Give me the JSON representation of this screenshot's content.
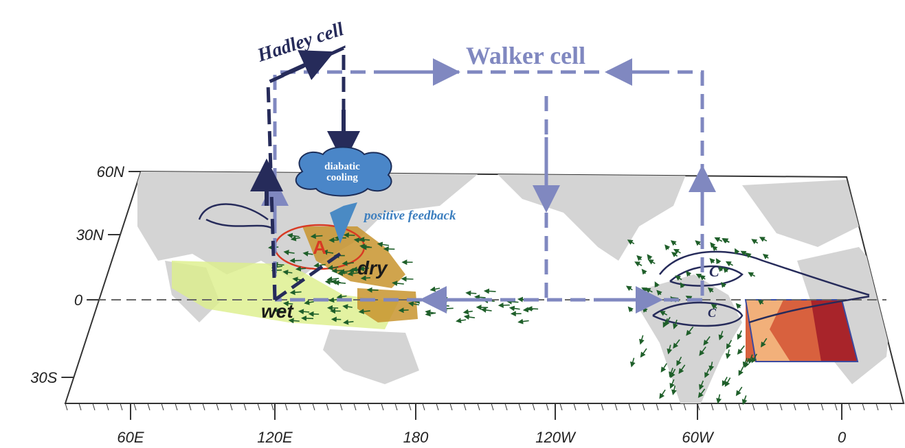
{
  "labels": {
    "hadley": "Hadley cell",
    "walker": "Walker cell",
    "cloud": [
      "diabatic",
      "cooling"
    ],
    "feedback": "positive feedback",
    "dry": "dry",
    "wet": "wet",
    "anticyclone": "A",
    "cyclones": [
      "C",
      "C"
    ]
  },
  "latitudes": [
    "60N",
    "30N",
    "0",
    "30S"
  ],
  "longitudes": [
    "60E",
    "120E",
    "180",
    "120W",
    "60W",
    "0"
  ]
}
